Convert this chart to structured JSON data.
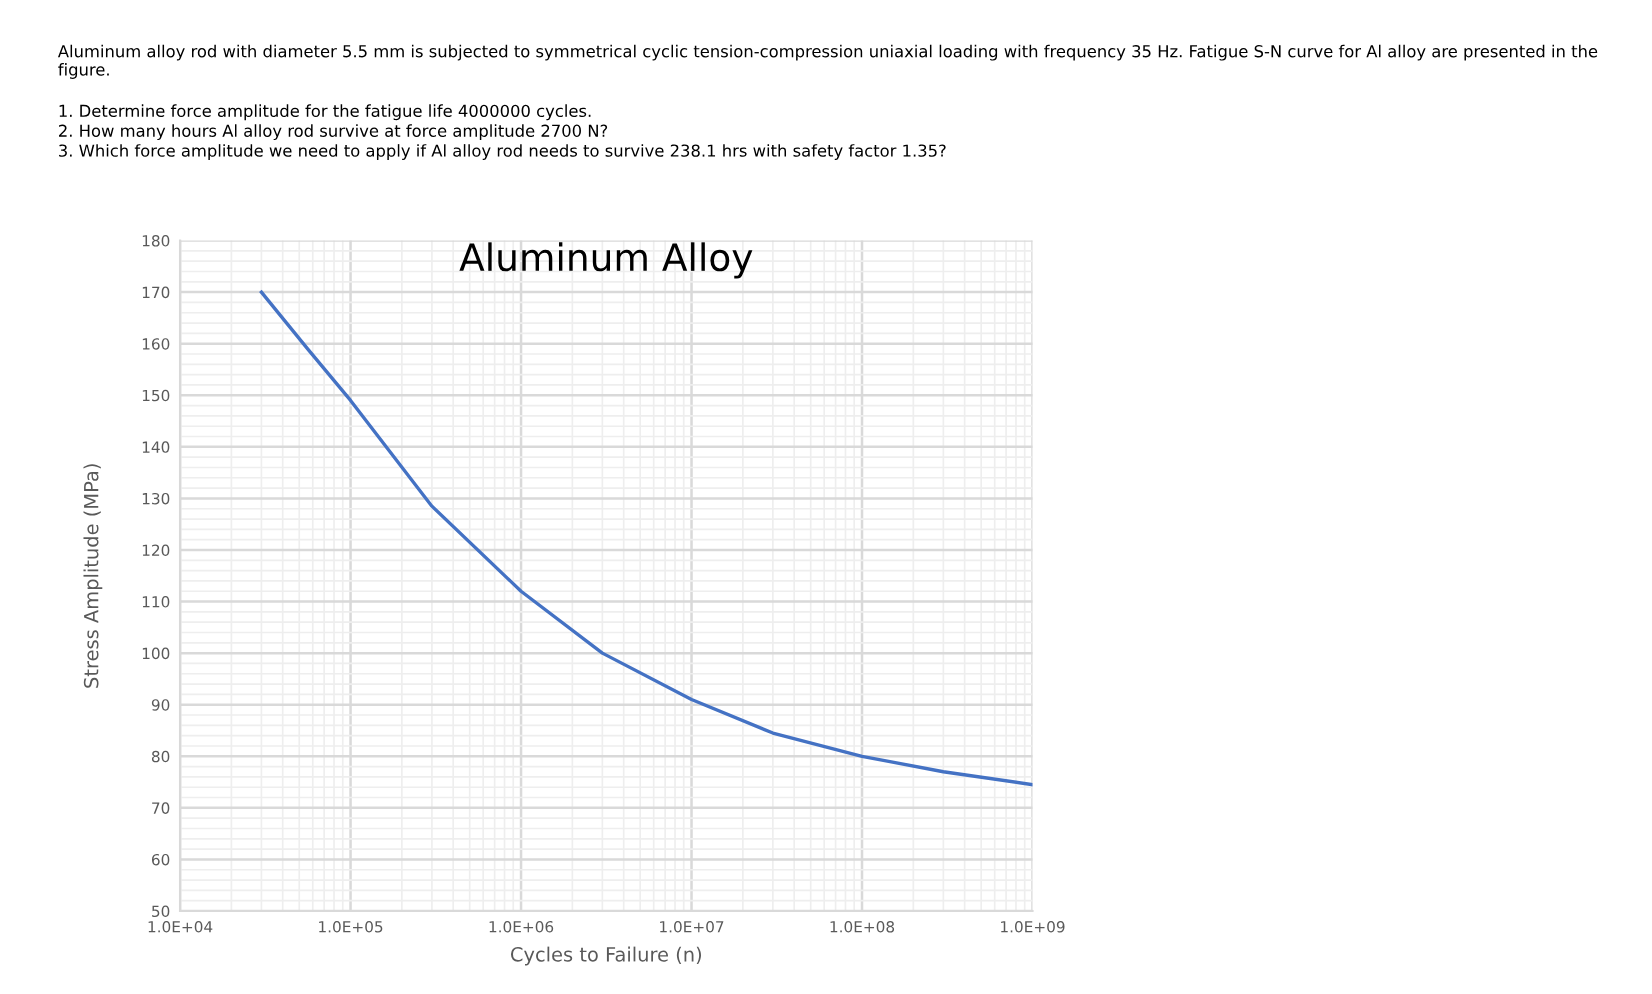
{
  "chart_data": {
    "type": "line",
    "title": "Aluminum Alloy",
    "xlabel": "Cycles to Failure (n)",
    "ylabel": "Stress Amplitude (MPa)",
    "annotations": [
      "Aluminum alloy rod with diameter 5.5 mm is subjected to symmetrical cyclic tension-compression uniaxial loading with frequency 35 Hz. Fatigue S-N curve for Al alloy are presented in the figure.",
      "1. Determine force amplitude for the fatigue life 4000000 cycles.",
      "2. How many hours Al alloy rod survive at force amplitude 2700 N?",
      "3. Which force amplitude we need to apply if Al alloy rod needs to survive 238.1 hrs with safety factor 1.35?"
    ],
    "x": [
      30000,
      56000,
      100000,
      300000,
      1000000,
      3000000,
      10000000,
      30000000,
      100000000,
      300000000,
      1000000000
    ],
    "series": [
      {
        "color": "#4472c4",
        "values": [
          170,
          159,
          149,
          128.5,
          112,
          100,
          91,
          84.5,
          80,
          77,
          74.5
        ]
      }
    ],
    "log": "x",
    "xlim": [
      10000,
      1000000000
    ],
    "xticks": [
      {
        "value": 10000,
        "label": "1.0E+04"
      },
      {
        "value": 100000,
        "label": "1.0E+05"
      },
      {
        "value": 1000000,
        "label": "1.0E+06"
      },
      {
        "value": 10000000,
        "label": "1.0E+07"
      },
      {
        "value": 100000000,
        "label": "1.0E+08"
      },
      {
        "value": 1000000000,
        "label": "1.0E+09"
      }
    ],
    "ylim": [
      50,
      180
    ],
    "yticks": [
      50,
      60,
      70,
      80,
      90,
      100,
      110,
      120,
      130,
      140,
      150,
      160,
      170,
      180
    ],
    "grid": true,
    "marker": "none",
    "line_style": "solid"
  }
}
